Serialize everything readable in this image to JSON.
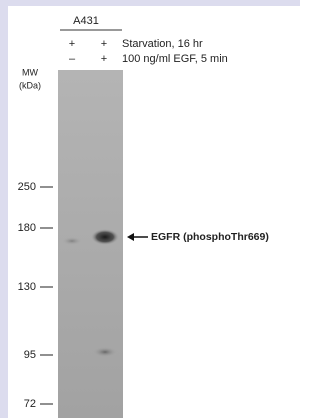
{
  "header": {
    "cell_line": "A431"
  },
  "conditions": [
    {
      "label": "Starvation, 16 hr",
      "lanes": [
        "+",
        "+"
      ]
    },
    {
      "label": "100 ng/ml EGF, 5 min",
      "lanes": [
        "–",
        "+"
      ]
    }
  ],
  "marker_title": [
    "MW",
    "(kDa)"
  ],
  "markers": [
    250,
    180,
    130,
    95,
    72
  ],
  "band_label": "EGFR (phosphoThr669)"
}
